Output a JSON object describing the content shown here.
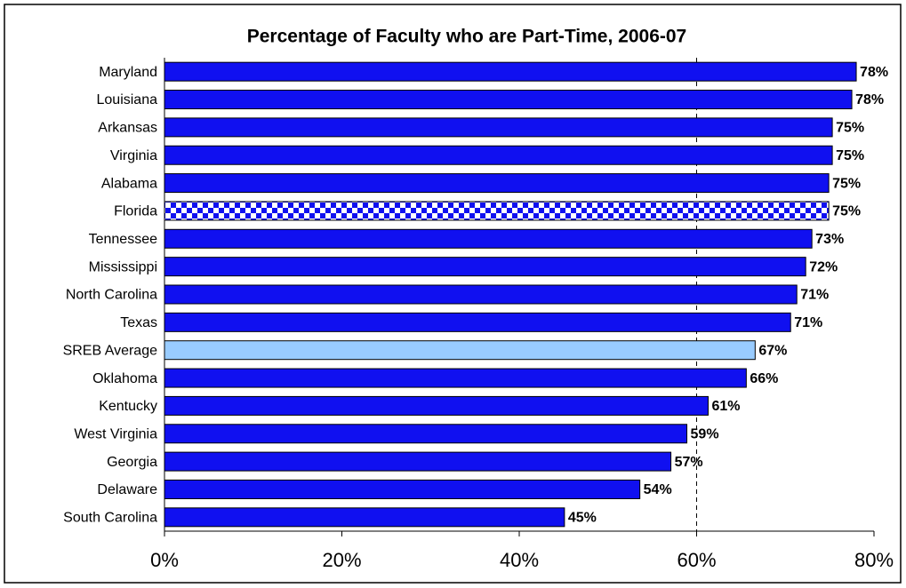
{
  "chart_data": {
    "type": "hbar",
    "title": "Percentage of Faculty who are Part-Time, 2006-07",
    "categories": [
      "Maryland",
      "Louisiana",
      "Arkansas",
      "Virginia",
      "Alabama",
      "Florida",
      "Tennessee",
      "Mississippi",
      "North Carolina",
      "Texas",
      "SREB Average",
      "Oklahoma",
      "Kentucky",
      "West Virginia",
      "Georgia",
      "Delaware",
      "South Carolina"
    ],
    "values": [
      78.0,
      77.5,
      75.3,
      75.3,
      74.9,
      74.9,
      73.0,
      72.3,
      71.3,
      70.6,
      66.6,
      65.6,
      61.3,
      58.9,
      57.1,
      53.6,
      45.1
    ],
    "value_labels": [
      "78%",
      "78%",
      "75%",
      "75%",
      "75%",
      "75%",
      "73%",
      "72%",
      "71%",
      "71%",
      "67%",
      "66%",
      "61%",
      "59%",
      "57%",
      "54%",
      "45%"
    ],
    "colors": [
      "#1010f0",
      "#1010f0",
      "#1010f0",
      "#1010f0",
      "#1010f0",
      "checkered",
      "#1010f0",
      "#1010f0",
      "#1010f0",
      "#1010f0",
      "#99ccff",
      "#1010f0",
      "#1010f0",
      "#1010f0",
      "#1010f0",
      "#1010f0",
      "#1010f0"
    ],
    "xlim": [
      0,
      80
    ],
    "xticks": [
      {
        "value": 0,
        "label": "0%"
      },
      {
        "value": 20,
        "label": "20%"
      },
      {
        "value": 40,
        "label": "40%"
      },
      {
        "value": 60,
        "label": "60%"
      },
      {
        "value": 80,
        "label": "80%"
      }
    ],
    "reference_x": 60
  }
}
